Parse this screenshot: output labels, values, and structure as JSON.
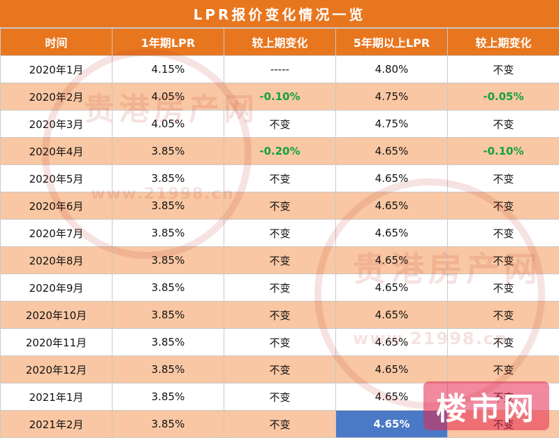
{
  "title": "LPR报价变化情况一览",
  "headers": [
    "时间",
    "1年期LPR",
    "较上期变化",
    "5年期以上LPR",
    "较上期变化"
  ],
  "rows": [
    {
      "date": "2020年1月",
      "lpr1y": "4.15%",
      "chg1y": "-----",
      "lpr5y": "4.80%",
      "chg5y": "不变"
    },
    {
      "date": "2020年2月",
      "lpr1y": "4.05%",
      "chg1y": "-0.10%",
      "lpr5y": "4.75%",
      "chg5y": "-0.05%"
    },
    {
      "date": "2020年3月",
      "lpr1y": "4.05%",
      "chg1y": "不变",
      "lpr5y": "4.75%",
      "chg5y": "不变"
    },
    {
      "date": "2020年4月",
      "lpr1y": "3.85%",
      "chg1y": "-0.20%",
      "lpr5y": "4.65%",
      "chg5y": "-0.10%"
    },
    {
      "date": "2020年5月",
      "lpr1y": "3.85%",
      "chg1y": "不变",
      "lpr5y": "4.65%",
      "chg5y": "不变"
    },
    {
      "date": "2020年6月",
      "lpr1y": "3.85%",
      "chg1y": "不变",
      "lpr5y": "4.65%",
      "chg5y": "不变"
    },
    {
      "date": "2020年7月",
      "lpr1y": "3.85%",
      "chg1y": "不变",
      "lpr5y": "4.65%",
      "chg5y": "不变"
    },
    {
      "date": "2020年8月",
      "lpr1y": "3.85%",
      "chg1y": "不变",
      "lpr5y": "4.65%",
      "chg5y": "不变"
    },
    {
      "date": "2020年9月",
      "lpr1y": "3.85%",
      "chg1y": "不变",
      "lpr5y": "4.65%",
      "chg5y": "不变"
    },
    {
      "date": "2020年10月",
      "lpr1y": "3.85%",
      "chg1y": "不变",
      "lpr5y": "4.65%",
      "chg5y": "不变"
    },
    {
      "date": "2020年11月",
      "lpr1y": "3.85%",
      "chg1y": "不变",
      "lpr5y": "4.65%",
      "chg5y": "不变"
    },
    {
      "date": "2020年12月",
      "lpr1y": "3.85%",
      "chg1y": "不变",
      "lpr5y": "4.65%",
      "chg5y": "不变"
    },
    {
      "date": "2021年1月",
      "lpr1y": "3.85%",
      "chg1y": "不变",
      "lpr5y": "4.65%",
      "chg5y": "不变"
    },
    {
      "date": "2021年2月",
      "lpr1y": "3.85%",
      "chg1y": "不变",
      "lpr5y": "4.65%",
      "chg5y": "不变"
    }
  ],
  "watermarks": {
    "brand_1": "贵港房产网",
    "site_1": "www.21998.cn",
    "brand_2": "贵港房产网",
    "site_2": "www.21998.cn",
    "logo": "楼市网"
  },
  "colors": {
    "header_orange": "#e8761f",
    "row_alt": "#f9c7a3",
    "decrease_green": "#15a13b",
    "highlight_blue": "#4a79c6"
  }
}
